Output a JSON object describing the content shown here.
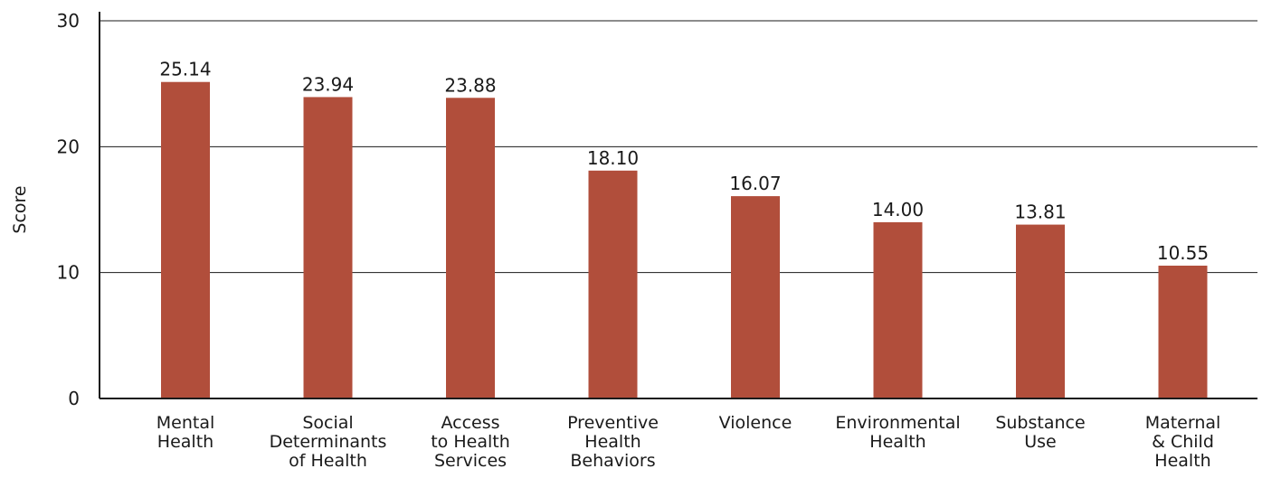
{
  "chart_data": {
    "type": "bar",
    "categories": [
      [
        "Mental",
        "Health"
      ],
      [
        "Social",
        "Determinants",
        "of Health"
      ],
      [
        "Access",
        "to Health",
        "Services"
      ],
      [
        "Preventive",
        "Health",
        "Behaviors"
      ],
      [
        "Violence"
      ],
      [
        "Environmental",
        "Health"
      ],
      [
        "Substance",
        "Use"
      ],
      [
        "Maternal",
        "& Child",
        "Health"
      ]
    ],
    "values": [
      25.14,
      23.94,
      23.88,
      18.1,
      16.07,
      14.0,
      13.81,
      10.55
    ],
    "value_labels": [
      "25.14",
      "23.94",
      "23.88",
      "18.10",
      "16.07",
      "14.00",
      "13.81",
      "10.55"
    ],
    "title": "",
    "xlabel": "",
    "ylabel": "Score",
    "ylim": [
      0,
      30
    ],
    "yticks": [
      0,
      10,
      20,
      30
    ],
    "grid": true,
    "bar_color": "#b14e3b",
    "grid_color": "#1a1a1a"
  }
}
